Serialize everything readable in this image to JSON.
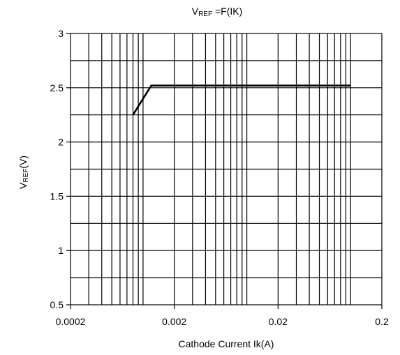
{
  "chart_data": {
    "type": "line",
    "title_main": "V",
    "title_sub": "REF",
    "title_rest": " =F(IK)",
    "xlabel": "Cathode Current Ik(A)",
    "ylabel_main": "V",
    "ylabel_sub": "REF",
    "ylabel_rest": "(V)",
    "x_scale": "log",
    "xlim": [
      0.0002,
      0.2
    ],
    "ylim": [
      0.5,
      3
    ],
    "x_tick_labels": [
      "0.0002",
      "0.002",
      "0.02",
      "0.2"
    ],
    "x_ticks": [
      0.0002,
      0.002,
      0.02,
      0.2
    ],
    "y_tick_labels": [
      "0.5",
      "1",
      "1.5",
      "2",
      "2.5",
      "3"
    ],
    "y_ticks": [
      0.5,
      1,
      1.5,
      2,
      2.5,
      3
    ],
    "grid": true,
    "series": [
      {
        "color": "#000000",
        "x": [
          0.0008,
          0.0012,
          0.1
        ],
        "y": [
          2.25,
          2.52,
          2.52
        ]
      }
    ]
  }
}
